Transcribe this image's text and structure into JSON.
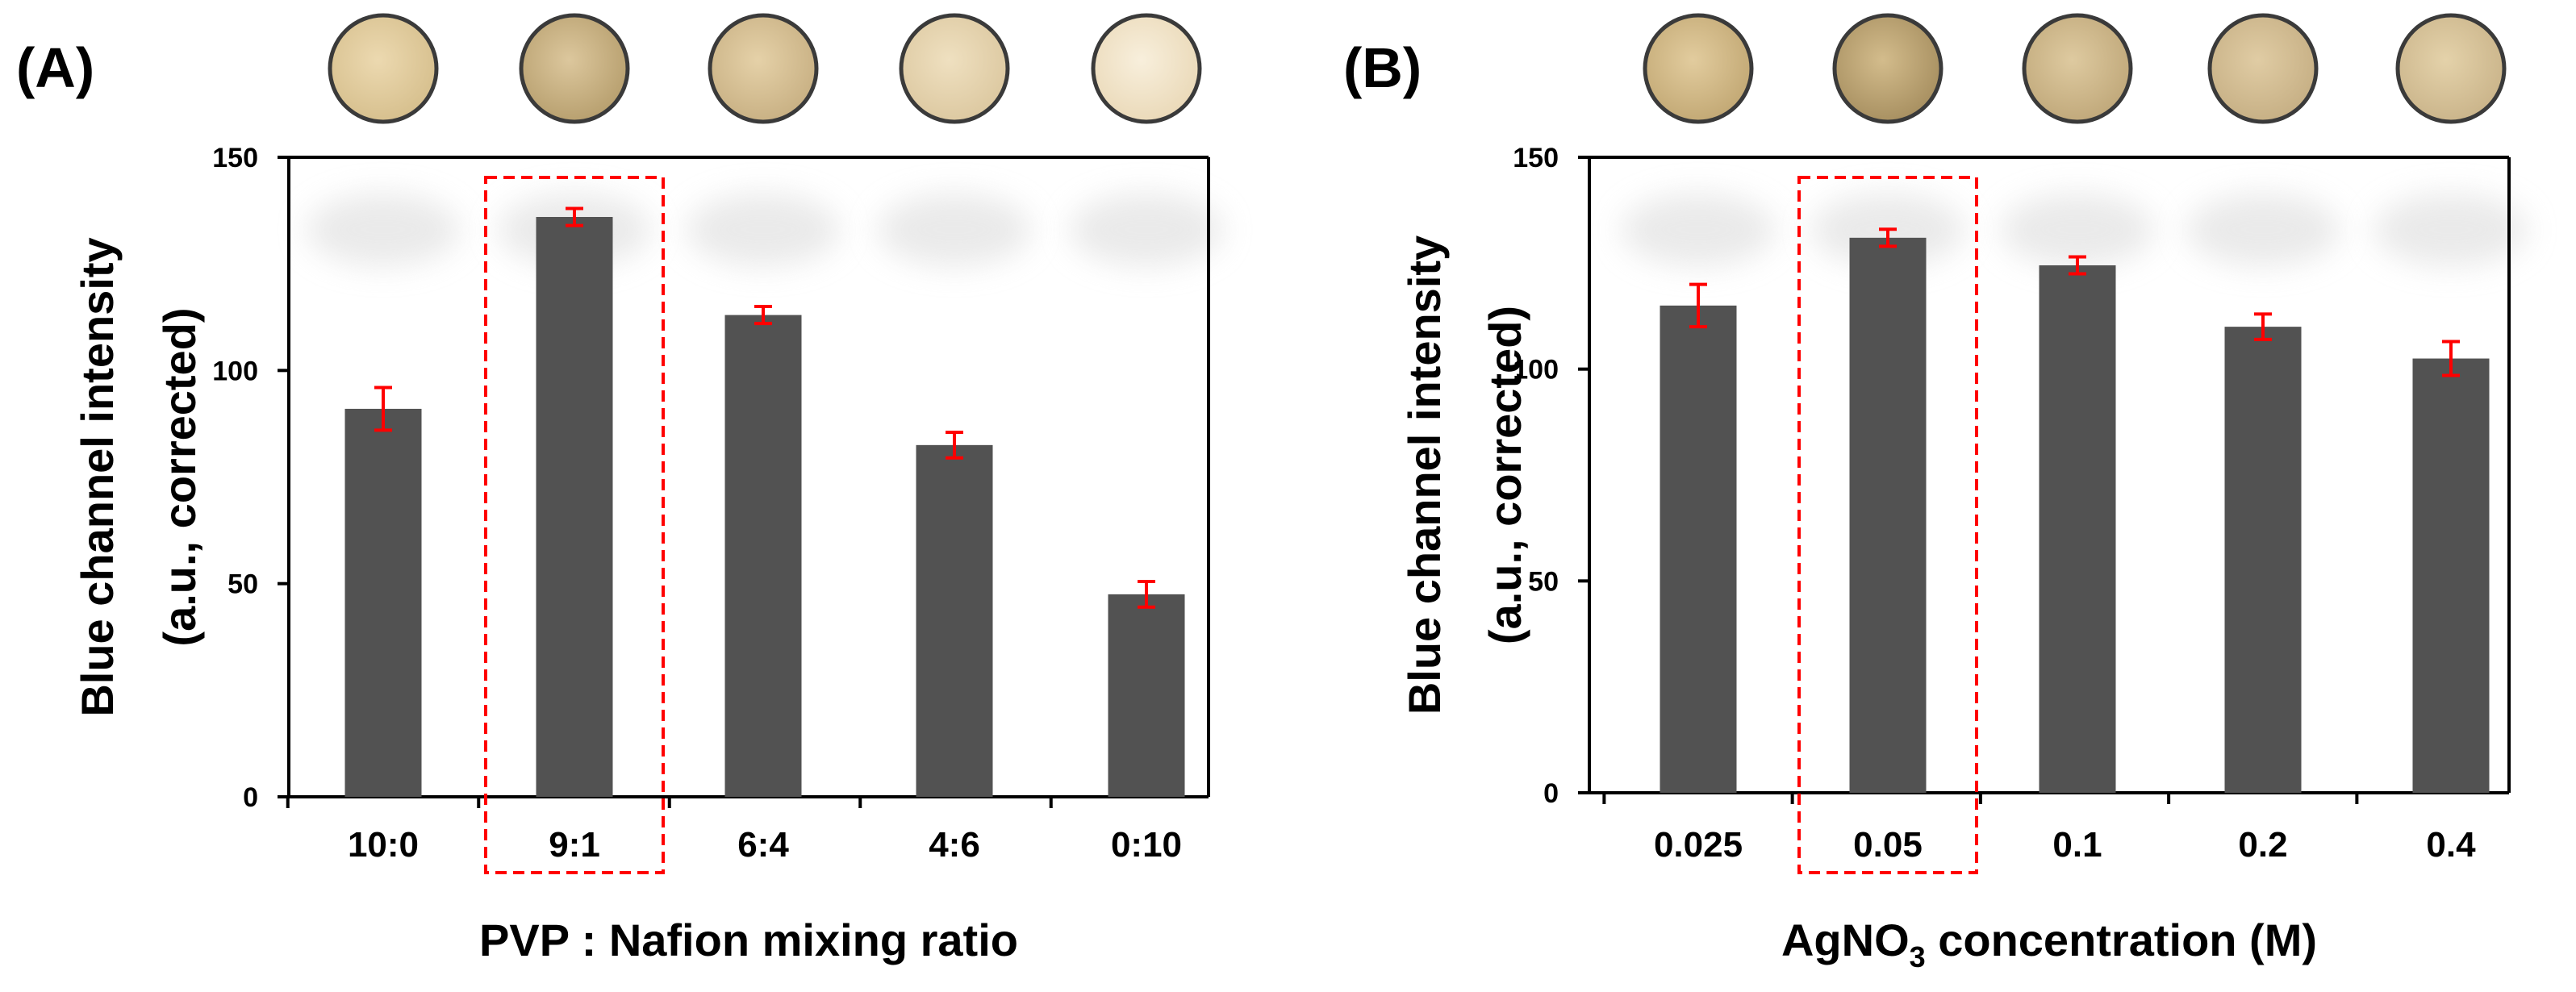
{
  "colors": {
    "bar": "#525252",
    "error_bar": "#ff0000",
    "highlight_box": "#ff0000",
    "axis": "#000000",
    "text": "#000000",
    "well_rim": "#3a3a3a"
  },
  "chart_data": [
    {
      "panel_label": "(A)",
      "type": "bar",
      "categories": [
        "10:0",
        "9:1",
        "6:4",
        "4:6",
        "0:10"
      ],
      "values": [
        91,
        136,
        113,
        82.5,
        47.5
      ],
      "errors": [
        5,
        2,
        2,
        3,
        3
      ],
      "highlighted_category": "9:1",
      "xlabel": "PVP : Nafion mixing ratio",
      "ylabel_line1": "Blue channel intensity",
      "ylabel_line2": "(a.u., corrected)",
      "ylim": [
        0,
        150
      ],
      "yticks": [
        "0",
        "50",
        "100",
        "150"
      ],
      "well_colors": [
        [
          "#ecd9b0",
          "#d6bf8d"
        ],
        [
          "#dcc79d",
          "#b79f6e"
        ],
        [
          "#e5d1a8",
          "#c8b083"
        ],
        [
          "#efe0c0",
          "#dcc8a0"
        ],
        [
          "#f8efdc",
          "#ead9b8"
        ]
      ]
    },
    {
      "panel_label": "(B)",
      "type": "bar",
      "categories": [
        "0.025",
        "0.05",
        "0.1",
        "0.2",
        "0.4"
      ],
      "values": [
        115,
        131,
        124.5,
        110,
        102.5
      ],
      "errors": [
        5,
        2,
        2,
        3,
        4
      ],
      "highlighted_category": "0.05",
      "xlabel_main": "AgNO",
      "xlabel_subscript": "3",
      "xlabel_rest": " concentration (M)",
      "ylabel_line1": "Blue channel intensity",
      "ylabel_line2": "(a.u., corrected)",
      "ylim": [
        0,
        150
      ],
      "yticks": [
        "0",
        "50",
        "100",
        "150"
      ],
      "well_colors": [
        [
          "#e2cc9e",
          "#c2a874"
        ],
        [
          "#d3bc8c",
          "#a78f60"
        ],
        [
          "#decaa0",
          "#c0a87a"
        ],
        [
          "#e0cca4",
          "#c6af84"
        ],
        [
          "#e4d2aa",
          "#cab48a"
        ]
      ]
    }
  ]
}
